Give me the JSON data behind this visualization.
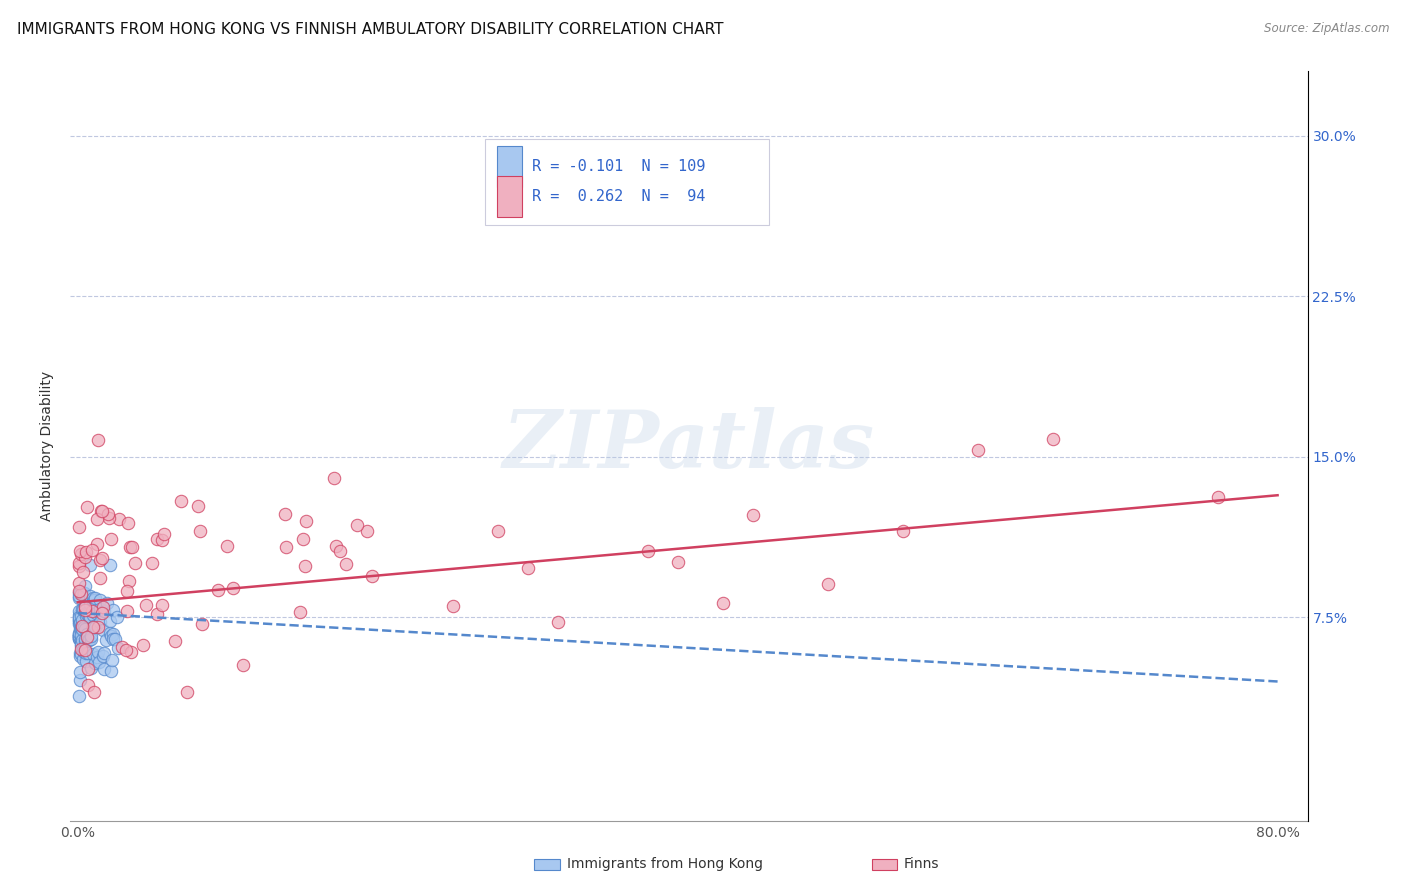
{
  "title": "IMMIGRANTS FROM HONG KONG VS FINNISH AMBULATORY DISABILITY CORRELATION CHART",
  "source_text": "Source: ZipAtlas.com",
  "ylabel": "Ambulatory Disability",
  "xlim": [
    -0.005,
    0.82
  ],
  "ylim": [
    -0.02,
    0.33
  ],
  "x_ticks": [
    0.0,
    0.1,
    0.2,
    0.3,
    0.4,
    0.5,
    0.6,
    0.7,
    0.8
  ],
  "x_tick_labels": [
    "0.0%",
    "",
    "",
    "",
    "",
    "",
    "",
    "",
    "80.0%"
  ],
  "y_ticks": [
    0.075,
    0.15,
    0.225,
    0.3
  ],
  "y_tick_labels": [
    "7.5%",
    "15.0%",
    "22.5%",
    "30.0%"
  ],
  "color_hk": "#a8c8f0",
  "color_hk_edge": "#5588cc",
  "color_finn": "#f0b0c0",
  "color_finn_edge": "#d04060",
  "color_hk_line": "#5588cc",
  "color_finn_line": "#d04060",
  "color_grid": "#c0c8e0",
  "legend_text_color": "#3366cc",
  "title_fontsize": 11,
  "label_fontsize": 10,
  "tick_fontsize": 10,
  "watermark": "ZIPatlas",
  "hk_seed": 42,
  "finn_seed": 99
}
